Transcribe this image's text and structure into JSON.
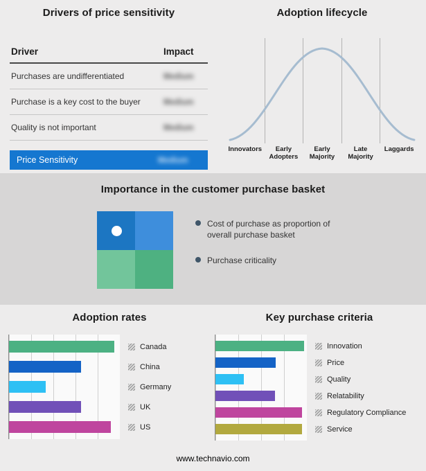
{
  "drivers": {
    "title": "Drivers of price sensitivity",
    "columns": [
      "Driver",
      "Impact"
    ],
    "impact_values_blurred": true,
    "rows": [
      {
        "driver": "Purchases are undifferentiated",
        "impact": "Medium"
      },
      {
        "driver": "Purchase is a key cost to the buyer",
        "impact": "Medium"
      },
      {
        "driver": "Quality is not important",
        "impact": "Medium"
      }
    ],
    "highlight": {
      "driver": "Price Sensitivity",
      "impact": "Medium",
      "color": "#1577d0"
    }
  },
  "lifecycle": {
    "title": "Adoption lifecycle",
    "categories": [
      "Innovators",
      "Early Adopters",
      "Early Majority",
      "Late Majority",
      "Laggards"
    ],
    "curve_color": "#a6bcd0"
  },
  "basket": {
    "title": "Importance in the customer purchase basket",
    "bullets": [
      "Cost of purchase as proportion of overall purchase basket",
      "Purchase criticality"
    ],
    "matrix": {
      "top_left": "#1c76c2",
      "top_right": "#3e8edc",
      "bottom_left": "#72c59b",
      "bottom_right": "#4eb181"
    }
  },
  "adoption_rates": {
    "title": "Adoption rates",
    "items": [
      {
        "label": "Canada",
        "value": 95,
        "color": "#4cb183"
      },
      {
        "label": "China",
        "value": 65,
        "color": "#1463c6"
      },
      {
        "label": "Germany",
        "value": 33,
        "color": "#2ec0f4"
      },
      {
        "label": "UK",
        "value": 65,
        "color": "#7150b8"
      },
      {
        "label": "US",
        "value": 92,
        "color": "#bf459e"
      }
    ]
  },
  "criteria": {
    "title": "Key purchase criteria",
    "items": [
      {
        "label": "Innovation",
        "value": 97,
        "color": "#4cb183"
      },
      {
        "label": "Price",
        "value": 66,
        "color": "#1463c6"
      },
      {
        "label": "Quality",
        "value": 31,
        "color": "#2ec0f4"
      },
      {
        "label": "Relatability",
        "value": 65,
        "color": "#7150b8"
      },
      {
        "label": "Regulatory Compliance",
        "value": 95,
        "color": "#bf459e"
      },
      {
        "label": "Service",
        "value": 95,
        "color": "#b2a93f"
      }
    ]
  },
  "footer": {
    "text": "www.technavio.com"
  },
  "chart_data": [
    {
      "type": "table",
      "title": "Drivers of price sensitivity",
      "columns": [
        "Driver",
        "Impact"
      ],
      "rows": [
        [
          "Purchases are undifferentiated",
          "Medium"
        ],
        [
          "Purchase is a key cost to the buyer",
          "Medium"
        ],
        [
          "Quality is not important",
          "Medium"
        ],
        [
          "Price Sensitivity",
          "Medium"
        ]
      ]
    },
    {
      "type": "line",
      "title": "Adoption lifecycle",
      "categories": [
        "Innovators",
        "Early Adopters",
        "Early Majority",
        "Late Majority",
        "Laggards"
      ],
      "shape": "bell curve peaking over Early Majority",
      "grid": true,
      "legend_position": "none"
    },
    {
      "type": "bar",
      "title": "Adoption rates",
      "orientation": "horizontal",
      "categories": [
        "Canada",
        "China",
        "Germany",
        "UK",
        "US"
      ],
      "values": [
        95,
        65,
        33,
        65,
        92
      ],
      "xlim": [
        0,
        100
      ],
      "grid": true
    },
    {
      "type": "bar",
      "title": "Key purchase criteria",
      "orientation": "horizontal",
      "categories": [
        "Innovation",
        "Price",
        "Quality",
        "Relatability",
        "Regulatory Compliance",
        "Service"
      ],
      "values": [
        97,
        66,
        31,
        65,
        95,
        95
      ],
      "xlim": [
        0,
        100
      ],
      "grid": true
    }
  ]
}
